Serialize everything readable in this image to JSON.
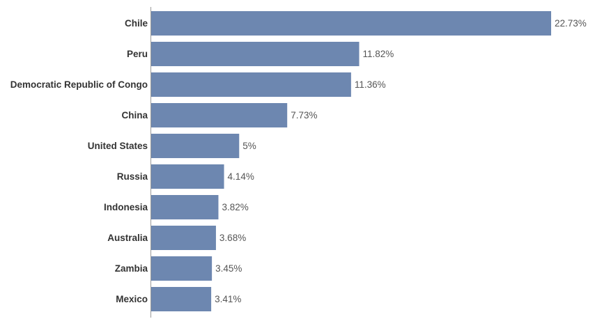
{
  "chart_data": {
    "type": "bar",
    "orientation": "horizontal",
    "categories": [
      "Chile",
      "Peru",
      "Democratic Republic of Congo",
      "China",
      "United States",
      "Russia",
      "Indonesia",
      "Australia",
      "Zambia",
      "Mexico"
    ],
    "values": [
      22.73,
      11.82,
      11.36,
      7.73,
      5,
      4.14,
      3.82,
      3.68,
      3.45,
      3.41
    ],
    "value_labels": [
      "22.73%",
      "11.82%",
      "11.36%",
      "7.73%",
      "5%",
      "4.14%",
      "3.82%",
      "3.68%",
      "3.45%",
      "3.41%"
    ],
    "xlim": [
      0,
      22.73
    ],
    "grid": false,
    "bar_color": "#6d87b0",
    "axis_color": "#999999"
  }
}
